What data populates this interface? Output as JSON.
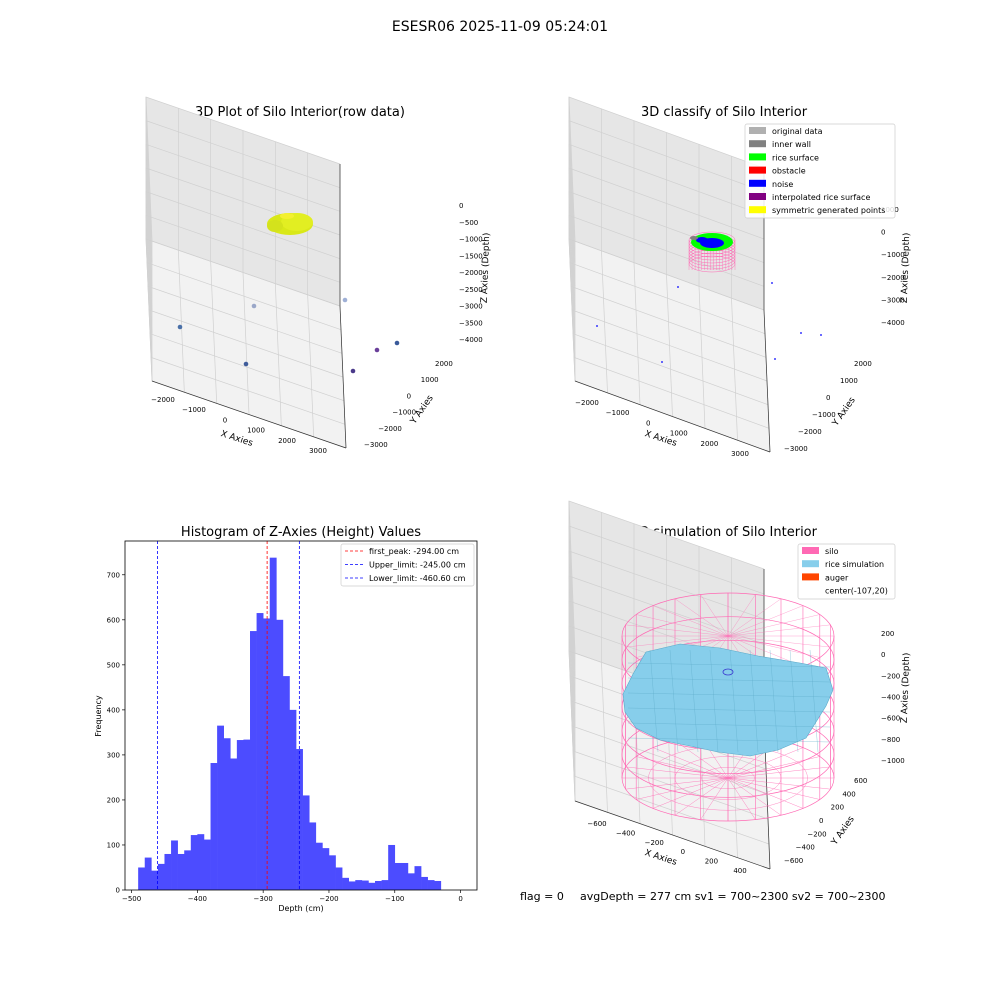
{
  "figure_title": "ESESR06 2025-11-09 05:24:01",
  "footer": {
    "flag": "flag = 0",
    "stats": "avgDepth = 277 cm  sv1 = 700~2300  sv2 = 700~2300"
  },
  "colors": {
    "hist_bar": "#4c4cff",
    "silo": "#ff69b4",
    "rice": "#87ceeb",
    "auger": "#ff4500",
    "rice_surface": "#00ff00",
    "noise": "#0000ff",
    "obstacle": "#ff0000",
    "inner_wall": "#808080",
    "original": "#b0b0b0",
    "interpolated": "#800080",
    "symmetric": "#ffff00"
  },
  "chart_data": [
    {
      "type": "scatter",
      "title": "3D Plot of Silo Interior(row data)",
      "xlabel": "X Axies",
      "ylabel": "Y Axies",
      "zlabel": "Z Axies (Depth)",
      "x_ticks": [
        "−2000",
        "−1000",
        "0",
        "1000",
        "2000",
        "3000"
      ],
      "y_ticks": [
        "−3000",
        "−2000",
        "−1000",
        "0",
        "1000",
        "2000"
      ],
      "z_ticks": [
        "0",
        "−500",
        "−1000",
        "−1500",
        "−2000",
        "−2500",
        "−3000",
        "−3500",
        "−4000"
      ]
    },
    {
      "type": "scatter",
      "title": "3D classify of Silo Interior",
      "xlabel": "X Axies",
      "ylabel": "Y Axies",
      "zlabel": "Z Axies (Depth)",
      "x_ticks": [
        "−2000",
        "−1000",
        "0",
        "1000",
        "2000",
        "3000"
      ],
      "y_ticks": [
        "−3000",
        "−2000",
        "−1000",
        "0",
        "1000",
        "2000"
      ],
      "z_ticks": [
        "1000",
        "0",
        "−1000",
        "−2000",
        "−3000",
        "−4000"
      ],
      "legend": [
        {
          "label": "original data",
          "color": "#b0b0b0"
        },
        {
          "label": "inner wall",
          "color": "#808080"
        },
        {
          "label": "rice surface",
          "color": "#00ff00"
        },
        {
          "label": "obstacle",
          "color": "#ff0000"
        },
        {
          "label": "noise",
          "color": "#0000ff"
        },
        {
          "label": "interpolated rice surface",
          "color": "#800080"
        },
        {
          "label": "symmetric generated points",
          "color": "#ffff00"
        }
      ]
    },
    {
      "type": "bar",
      "title": "Histogram of Z-Axies (Height) Values",
      "xlabel": "Depth (cm)",
      "ylabel": "Frequency",
      "xlim": [
        -510,
        25
      ],
      "ylim": [
        0,
        775
      ],
      "x_ticks": [
        -500,
        -400,
        -300,
        -200,
        -100,
        0
      ],
      "y_ticks": [
        0,
        100,
        200,
        300,
        400,
        500,
        600,
        700
      ],
      "bin_start": -490,
      "bin_width": 10,
      "values": [
        50,
        72,
        43,
        58,
        80,
        110,
        80,
        88,
        122,
        124,
        112,
        282,
        365,
        337,
        292,
        333,
        334,
        575,
        615,
        603,
        738,
        600,
        475,
        400,
        313,
        210,
        150,
        105,
        93,
        77,
        50,
        27,
        19,
        22,
        21,
        16,
        20,
        22,
        100,
        60,
        60,
        37,
        53,
        29,
        22,
        20
      ],
      "lines": [
        {
          "label": "first_peak: -294.00 cm",
          "value": -294.0,
          "color": "#ff0000"
        },
        {
          "label": "Upper_limit: -245.00 cm",
          "value": -245.0,
          "color": "#0000ff"
        },
        {
          "label": "Lower_limit: -460.60 cm",
          "value": -460.6,
          "color": "#0000ff"
        }
      ],
      "legend_position": "top-right"
    },
    {
      "type": "scatter",
      "title": "3D simulation of Silo Interior",
      "xlabel": "X Axies",
      "ylabel": "Y Axies",
      "zlabel": "Z Axies (Depth)",
      "x_ticks": [
        "−600",
        "−400",
        "−200",
        "0",
        "200",
        "400"
      ],
      "y_ticks": [
        "−600",
        "−400",
        "−200",
        "0",
        "200",
        "400",
        "600"
      ],
      "z_ticks": [
        "200",
        "0",
        "−200",
        "−400",
        "−600",
        "−800",
        "−1000"
      ],
      "legend": [
        {
          "label": "silo",
          "color": "#ff69b4"
        },
        {
          "label": "rice simulation",
          "color": "#87ceeb"
        },
        {
          "label": "auger",
          "color": "#ff4500"
        },
        {
          "label": "center(-107,20)",
          "color": ""
        }
      ]
    }
  ]
}
